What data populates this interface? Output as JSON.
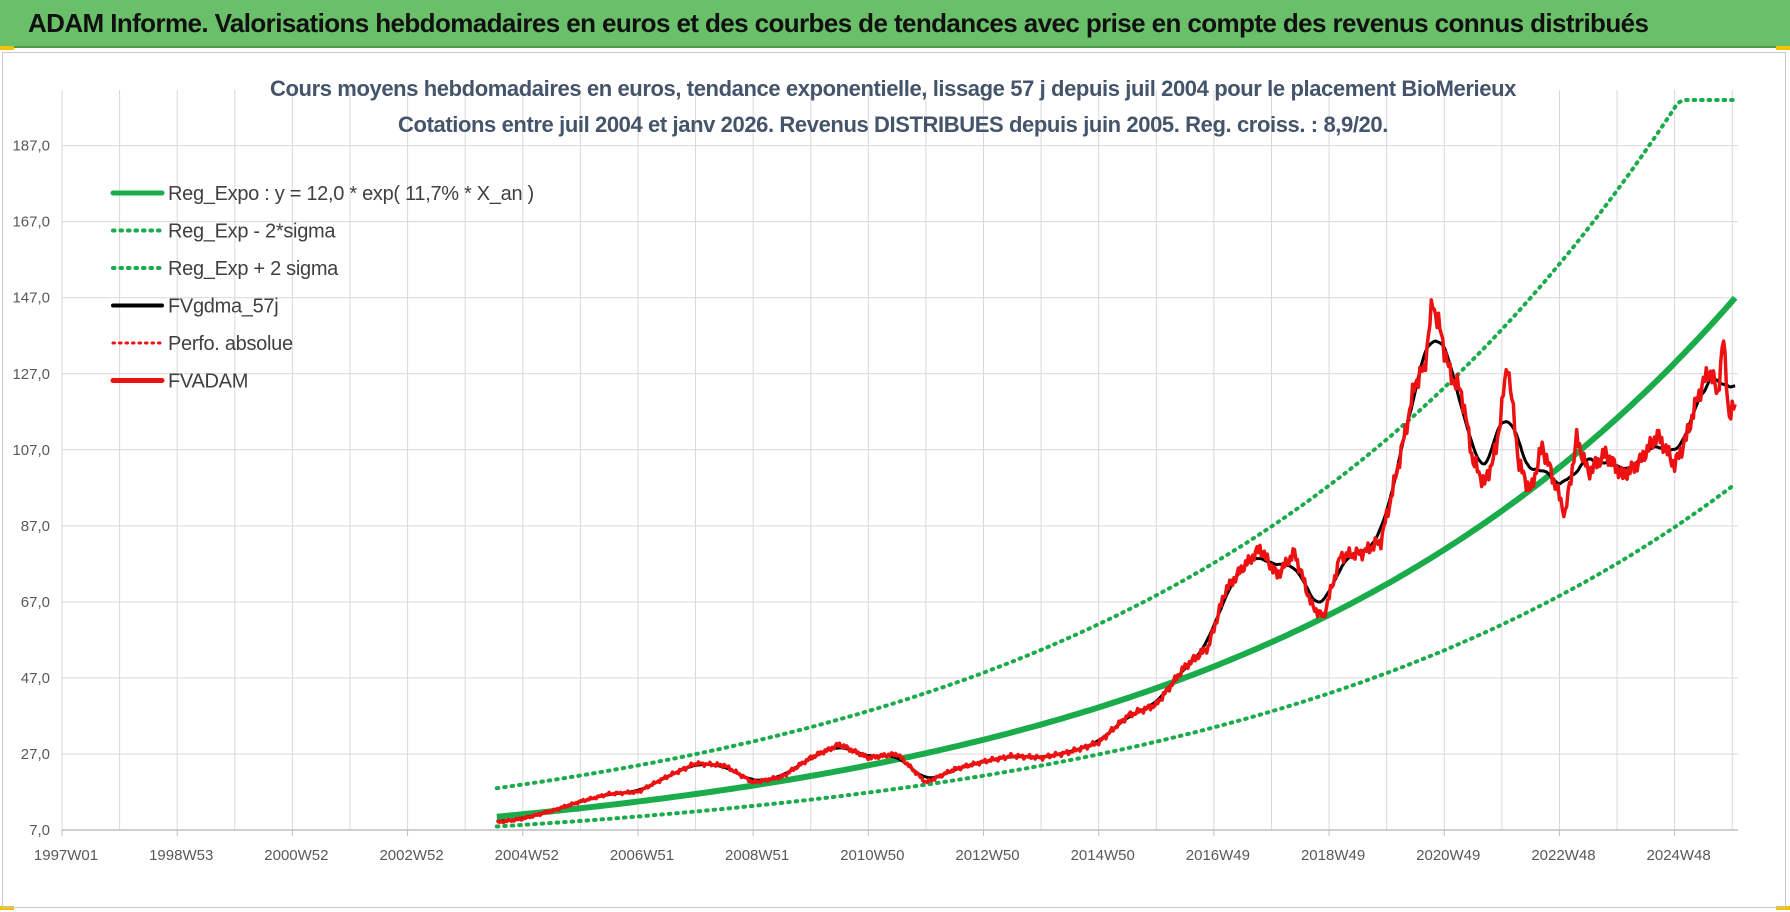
{
  "banner": {
    "title": "ADAM Informe. Valorisations hebdomadaires en euros et des courbes de tendances avec prise en compte des revenus connus distribués"
  },
  "colors": {
    "banner_bg": "#6abf69",
    "reg_green": "#1aab4b",
    "fvgdma_black": "#000000",
    "fvadam_red": "#ee1111",
    "grid": "#d9d9d9"
  },
  "chart_data": {
    "type": "line",
    "title": [
      "Cours moyens hebdomadaires en euros, tendance exponentielle, lissage 57 j depuis juil 2004 pour le placement BioMerieux",
      "Cotations entre juil 2004 et janv 2026. Revenus DISTRIBUES depuis juin 2005. Reg. croiss. : 8,9/20."
    ],
    "x_tick_labels": [
      "1997W01",
      "1998W53",
      "2000W52",
      "2002W52",
      "2004W52",
      "2006W51",
      "2008W51",
      "2010W50",
      "2012W50",
      "2014W50",
      "2016W49",
      "2018W49",
      "2020W49",
      "2022W48",
      "2024W48"
    ],
    "x_range_years": [
      1997.0,
      2026.1
    ],
    "y_tick_labels": [
      "7,0",
      "27,0",
      "47,0",
      "67,0",
      "87,0",
      "107,0",
      "127,0",
      "147,0",
      "167,0",
      "187,0"
    ],
    "y_ticks": [
      7,
      27,
      47,
      67,
      87,
      107,
      127,
      147,
      167,
      187
    ],
    "ylim": [
      7,
      199
    ],
    "grid": true,
    "legend_position": "top-left",
    "regression": {
      "a": 12.0,
      "rate": 0.117,
      "start_year": 2004.55,
      "end_year": 2026.05,
      "sigma_factor_plus": 1.5,
      "sigma_factor_minus": 0.66
    },
    "series": [
      {
        "name": "Reg_Expo : y = 12,0 * exp( 11,7% *  X_an )",
        "style": "solid-green"
      },
      {
        "name": "Reg_Exp - 2*sigma",
        "style": "dotted-green"
      },
      {
        "name": "Reg_Exp + 2 sigma",
        "style": "dotted-green"
      },
      {
        "name": "FVgdma_57j",
        "style": "solid-black"
      },
      {
        "name": "Perfo. absolue",
        "style": "dotted-red"
      },
      {
        "name": "FVADAM",
        "style": "solid-red",
        "points": [
          [
            2004.55,
            9.0
          ],
          [
            2005.0,
            10.0
          ],
          [
            2005.5,
            12.0
          ],
          [
            2006.0,
            14.5
          ],
          [
            2006.5,
            16.5
          ],
          [
            2007.0,
            17.0
          ],
          [
            2007.5,
            21.0
          ],
          [
            2008.0,
            24.5
          ],
          [
            2008.5,
            24.0
          ],
          [
            2009.0,
            19.5
          ],
          [
            2009.5,
            21.0
          ],
          [
            2010.0,
            26.0
          ],
          [
            2010.5,
            29.5
          ],
          [
            2011.0,
            26.0
          ],
          [
            2011.5,
            27.0
          ],
          [
            2012.0,
            19.5
          ],
          [
            2012.5,
            23.0
          ],
          [
            2013.0,
            25.0
          ],
          [
            2013.5,
            26.5
          ],
          [
            2014.0,
            26.0
          ],
          [
            2014.5,
            27.5
          ],
          [
            2015.0,
            30.0
          ],
          [
            2015.5,
            37.0
          ],
          [
            2016.0,
            40.0
          ],
          [
            2016.5,
            50.0
          ],
          [
            2016.9,
            55.0
          ],
          [
            2017.2,
            70.0
          ],
          [
            2017.5,
            76.0
          ],
          [
            2017.8,
            81.0
          ],
          [
            2018.1,
            74.0
          ],
          [
            2018.4,
            80.0
          ],
          [
            2018.7,
            66.0
          ],
          [
            2018.9,
            63.0
          ],
          [
            2019.2,
            79.0
          ],
          [
            2019.6,
            80.0
          ],
          [
            2019.9,
            83.0
          ],
          [
            2020.1,
            96.0
          ],
          [
            2020.3,
            110.0
          ],
          [
            2020.5,
            125.0
          ],
          [
            2020.65,
            128.0
          ],
          [
            2020.8,
            146.0
          ],
          [
            2020.95,
            137.0
          ],
          [
            2021.1,
            127.0
          ],
          [
            2021.3,
            122.0
          ],
          [
            2021.5,
            104.0
          ],
          [
            2021.7,
            98.0
          ],
          [
            2021.9,
            107.0
          ],
          [
            2022.1,
            130.0
          ],
          [
            2022.3,
            103.0
          ],
          [
            2022.5,
            96.0
          ],
          [
            2022.7,
            108.0
          ],
          [
            2022.9,
            99.0
          ],
          [
            2023.1,
            90.0
          ],
          [
            2023.3,
            110.0
          ],
          [
            2023.5,
            101.0
          ],
          [
            2023.8,
            106.0
          ],
          [
            2024.1,
            100.0
          ],
          [
            2024.4,
            104.0
          ],
          [
            2024.7,
            111.0
          ],
          [
            2025.0,
            103.0
          ],
          [
            2025.2,
            110.0
          ],
          [
            2025.4,
            121.0
          ],
          [
            2025.6,
            128.0
          ],
          [
            2025.75,
            122.0
          ],
          [
            2025.85,
            136.0
          ],
          [
            2025.95,
            115.0
          ],
          [
            2026.05,
            119.0
          ]
        ]
      }
    ]
  }
}
